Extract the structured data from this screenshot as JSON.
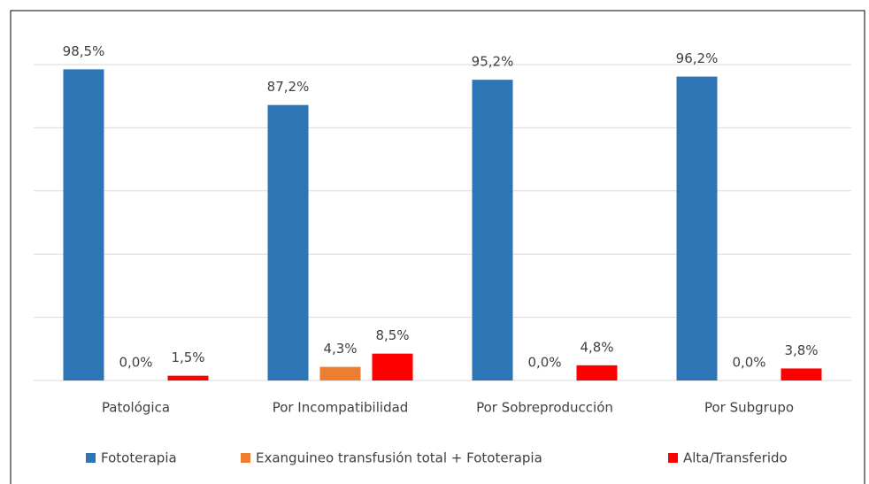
{
  "chart_data": {
    "type": "bar",
    "categories": [
      "Patológica",
      "Por Incompatibilidad",
      "Por Sobreproducción",
      "Por Subgrupo"
    ],
    "series": [
      {
        "name": "Fototerapia",
        "color": "#2e75b6",
        "values": [
          98.5,
          87.2,
          95.2,
          96.2
        ],
        "value_labels": [
          "98,5%",
          "87,2%",
          "95,2%",
          "96,2%"
        ]
      },
      {
        "name": "Exanguineo transfusión total + Fototerapia",
        "color": "#ed7d31",
        "values": [
          0,
          4.3,
          0,
          0
        ],
        "value_labels": [
          "0,0%",
          "4,3%",
          "0,0%",
          "0,0%"
        ]
      },
      {
        "name": "Alta/Transferido",
        "color": "#ff0000",
        "values": [
          1.5,
          8.5,
          4.8,
          3.8
        ],
        "value_labels": [
          "1,5%",
          "8,5%",
          "4,8%",
          "3,8%"
        ]
      }
    ],
    "ylim": [
      0,
      100
    ],
    "yticks": [
      0,
      20,
      40,
      60,
      80,
      100
    ],
    "grid": true,
    "legend": "bottom"
  }
}
